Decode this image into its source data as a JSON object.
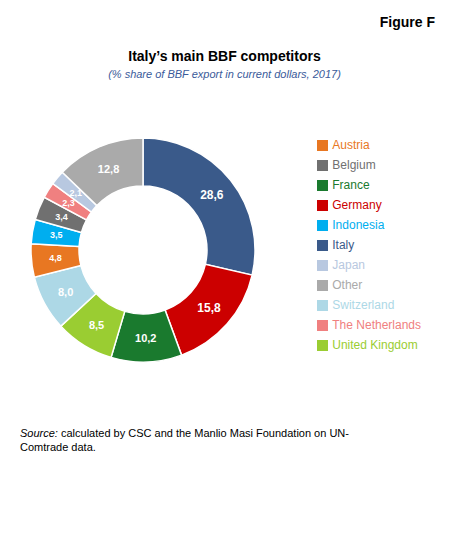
{
  "chart_data": {
    "type": "pie",
    "title": "Italy’s main BBF competitors",
    "subtitle": "(% share of BBF export in current dollars, 2017)",
    "annotations": [
      "Figure F",
      "Source:",
      " calculated by CSC and the Manlio Masi Foundation on UN-\nComtrade data."
    ],
    "categories": [
      "Italy",
      "Germany",
      "France",
      "United Kingdom",
      "Switzerland",
      "Austria",
      "Indonesia",
      "Belgium",
      "The Netherlands",
      "Japan",
      "Other"
    ],
    "values": [
      28.6,
      15.8,
      10.2,
      8.5,
      8.0,
      4.8,
      3.5,
      3.4,
      2.3,
      2.1,
      12.8
    ],
    "value_labels": [
      "28,6",
      "15,8",
      "10,2",
      "8,5",
      "8,0",
      "4,8",
      "3,5",
      "3,4",
      "2,3",
      "2,1",
      "12,8"
    ],
    "colors": [
      "#3A5A8A",
      "#CC0000",
      "#1A7A2E",
      "#9ACD32",
      "#ADD8E6",
      "#E87722",
      "#00AEEF",
      "#707070",
      "#F08080",
      "#B8C8E0",
      "#AAAAAA"
    ],
    "data_labels": true,
    "legend": "right"
  }
}
